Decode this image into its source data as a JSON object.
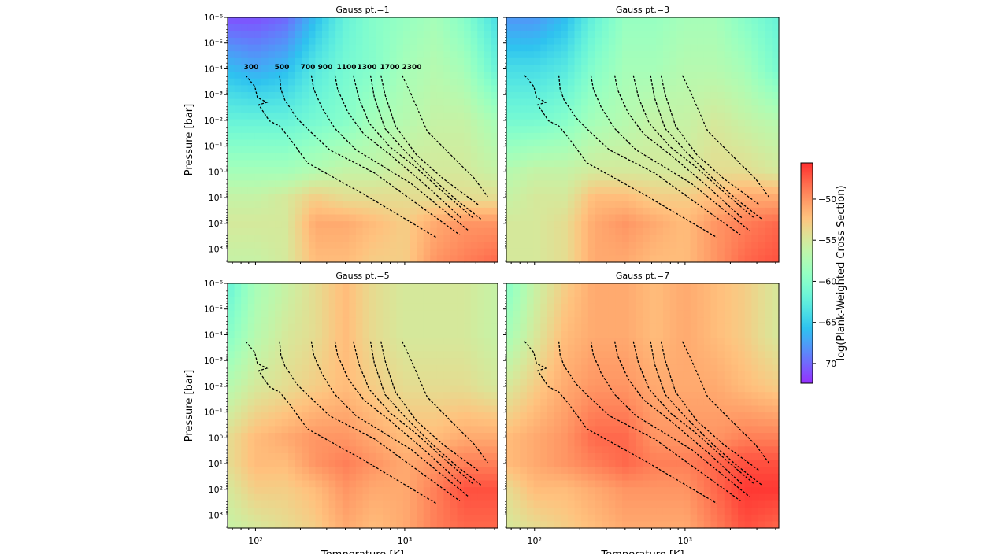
{
  "chart_data": {
    "type": "heatmap",
    "xlabel": "Temperature [K]",
    "ylabel": "Pressure [bar]",
    "xscale": "log",
    "yscale": "log",
    "xlim": [
      65,
      4200
    ],
    "ylim": [
      3200,
      1e-06
    ],
    "y_inverted": true,
    "x_ticks": [
      {
        "value": 100,
        "label": "10²"
      },
      {
        "value": 1000,
        "label": "10³"
      }
    ],
    "y_ticks": [
      {
        "value": 1e-06,
        "label": "10⁻⁶"
      },
      {
        "value": 1e-05,
        "label": "10⁻⁵"
      },
      {
        "value": 0.0001,
        "label": "10⁻⁴"
      },
      {
        "value": 0.001,
        "label": "10⁻³"
      },
      {
        "value": 0.01,
        "label": "10⁻²"
      },
      {
        "value": 0.1,
        "label": "10⁻¹"
      },
      {
        "value": 1,
        "label": "10⁰"
      },
      {
        "value": 10,
        "label": "10¹"
      },
      {
        "value": 100,
        "label": "10²"
      },
      {
        "value": 1000,
        "label": "10³"
      }
    ],
    "grid": false,
    "colormap": "rainbow",
    "colorbar": {
      "label": "log(Plank-Weighted Cross Section)",
      "range": [
        -72.4,
        -45.6
      ],
      "ticks": [
        -50,
        -55,
        -60,
        -65,
        -70
      ],
      "placement": "right"
    },
    "grid_T": [
      65,
      100,
      160,
      250,
      400,
      630,
      1000,
      1600,
      2500,
      4200
    ],
    "grid_P": [
      1e-06,
      0.0001,
      0.01,
      1,
      10,
      100,
      3200
    ],
    "panels": [
      {
        "title": "Gauss pt.=1",
        "z": [
          [
            -71,
            -71,
            -70,
            -66,
            -62,
            -60,
            -59,
            -58,
            -60,
            -64
          ],
          [
            -66,
            -67,
            -66,
            -63,
            -61,
            -60,
            -58,
            -57,
            -58,
            -62
          ],
          [
            -62,
            -62,
            -62,
            -61,
            -60,
            -58,
            -57,
            -56,
            -56,
            -58
          ],
          [
            -58,
            -58,
            -58,
            -57,
            -56,
            -56,
            -55,
            -55,
            -55,
            -56
          ],
          [
            -56,
            -56,
            -55,
            -53,
            -54,
            -54,
            -54,
            -54,
            -54,
            -54
          ],
          [
            -55,
            -55,
            -55,
            -51,
            -51,
            -52,
            -53,
            -51,
            -50,
            -50
          ],
          [
            -56,
            -56,
            -55,
            -52,
            -52,
            -53,
            -53,
            -50,
            -49,
            -48
          ]
        ]
      },
      {
        "title": "Gauss pt.=3",
        "z": [
          [
            -68,
            -68,
            -66,
            -62,
            -59,
            -59,
            -58,
            -58,
            -60,
            -62
          ],
          [
            -64,
            -64,
            -63,
            -60,
            -58,
            -58,
            -57,
            -57,
            -58,
            -61
          ],
          [
            -61,
            -61,
            -60,
            -58,
            -57,
            -56,
            -56,
            -55,
            -56,
            -57
          ],
          [
            -57,
            -56,
            -56,
            -55,
            -55,
            -55,
            -55,
            -54,
            -54,
            -55
          ],
          [
            -56,
            -55,
            -55,
            -52,
            -52,
            -53,
            -53,
            -52,
            -51,
            -51
          ],
          [
            -55,
            -55,
            -54,
            -51,
            -50,
            -51,
            -52,
            -50,
            -49,
            -48
          ],
          [
            -55,
            -55,
            -54,
            -51,
            -51,
            -52,
            -52,
            -50,
            -48,
            -47
          ]
        ]
      },
      {
        "title": "Gauss pt.=5",
        "z": [
          [
            -62,
            -58,
            -56,
            -54,
            -52,
            -54,
            -55,
            -55,
            -55,
            -56
          ],
          [
            -60,
            -57,
            -55,
            -54,
            -52,
            -54,
            -55,
            -55,
            -55,
            -56
          ],
          [
            -57,
            -55,
            -54,
            -53,
            -52,
            -53,
            -54,
            -54,
            -54,
            -55
          ],
          [
            -54,
            -52,
            -51,
            -50,
            -50,
            -51,
            -52,
            -52,
            -51,
            -51
          ],
          [
            -54,
            -52,
            -52,
            -50,
            -49,
            -50,
            -51,
            -50,
            -49,
            -49
          ],
          [
            -55,
            -53,
            -53,
            -52,
            -50,
            -51,
            -51,
            -49,
            -47,
            -47
          ],
          [
            -56,
            -55,
            -54,
            -53,
            -51,
            -52,
            -51,
            -49,
            -48,
            -48
          ]
        ]
      },
      {
        "title": "Gauss pt.=7",
        "z": [
          [
            -60,
            -56,
            -53,
            -51,
            -51,
            -52,
            -51,
            -52,
            -53,
            -55
          ],
          [
            -58,
            -55,
            -52,
            -51,
            -51,
            -52,
            -51,
            -52,
            -53,
            -55
          ],
          [
            -55,
            -53,
            -51,
            -50,
            -50,
            -51,
            -51,
            -51,
            -52,
            -53
          ],
          [
            -52,
            -51,
            -50,
            -48,
            -48,
            -50,
            -50,
            -50,
            -49,
            -49
          ],
          [
            -52,
            -51,
            -50,
            -49,
            -48,
            -49,
            -49,
            -48,
            -47,
            -47
          ],
          [
            -54,
            -52,
            -52,
            -51,
            -50,
            -50,
            -50,
            -48,
            -46,
            -46
          ],
          [
            -55,
            -54,
            -53,
            -52,
            -51,
            -51,
            -51,
            -49,
            -47,
            -48
          ]
        ]
      }
    ],
    "profiles": [
      {
        "name": "300",
        "T": [
          86,
          99,
          103,
          119,
          105,
          124,
          145,
          171,
          223,
          532,
          1630
        ],
        "P": [
          0.00018,
          0.00049,
          0.0013,
          0.002,
          0.0025,
          0.0105,
          0.0166,
          0.054,
          0.45,
          7.4,
          355
        ]
      },
      {
        "name": "500",
        "T": [
          145,
          148,
          157,
          189,
          218,
          314,
          626,
          2340
        ],
        "P": [
          0.00018,
          0.00062,
          0.0016,
          0.0081,
          0.019,
          0.14,
          1.1,
          282
        ]
      },
      {
        "name": "700",
        "T": [
          237,
          246,
          278,
          341,
          472,
          1107,
          2700
        ],
        "P": [
          0.00018,
          0.00062,
          0.0032,
          0.021,
          0.14,
          2.9,
          200
        ]
      },
      {
        "name": "900",
        "T": [
          341,
          355,
          418,
          532,
          800,
          1413,
          2390
        ],
        "P": [
          0.00018,
          0.00062,
          0.0051,
          0.034,
          0.22,
          3.7,
          62
        ]
      },
      {
        "name": "1100",
        "T": [
          453,
          491,
          578,
          800,
          1200,
          1880,
          2880
        ],
        "P": [
          0.00018,
          0.0013,
          0.013,
          0.11,
          0.71,
          7.4,
          62
        ]
      },
      {
        "name": "1300",
        "T": [
          590,
          626,
          738,
          1020,
          1530,
          2210,
          3250
        ],
        "P": [
          0.00018,
          0.0013,
          0.021,
          0.17,
          1.8,
          12,
          69
        ]
      },
      {
        "name": "1700",
        "T": [
          693,
          738,
          867,
          1200,
          1800,
          3120
        ],
        "P": [
          0.00018,
          0.001,
          0.017,
          0.22,
          1.8,
          19
        ]
      },
      {
        "name": "2300",
        "T": [
          960,
          1107,
          1413,
          2300,
          2930,
          3600
        ],
        "P": [
          0.00018,
          0.001,
          0.026,
          0.45,
          1.8,
          9.3
        ]
      }
    ],
    "profile_labels_panel": "Gauss pt.=1"
  }
}
